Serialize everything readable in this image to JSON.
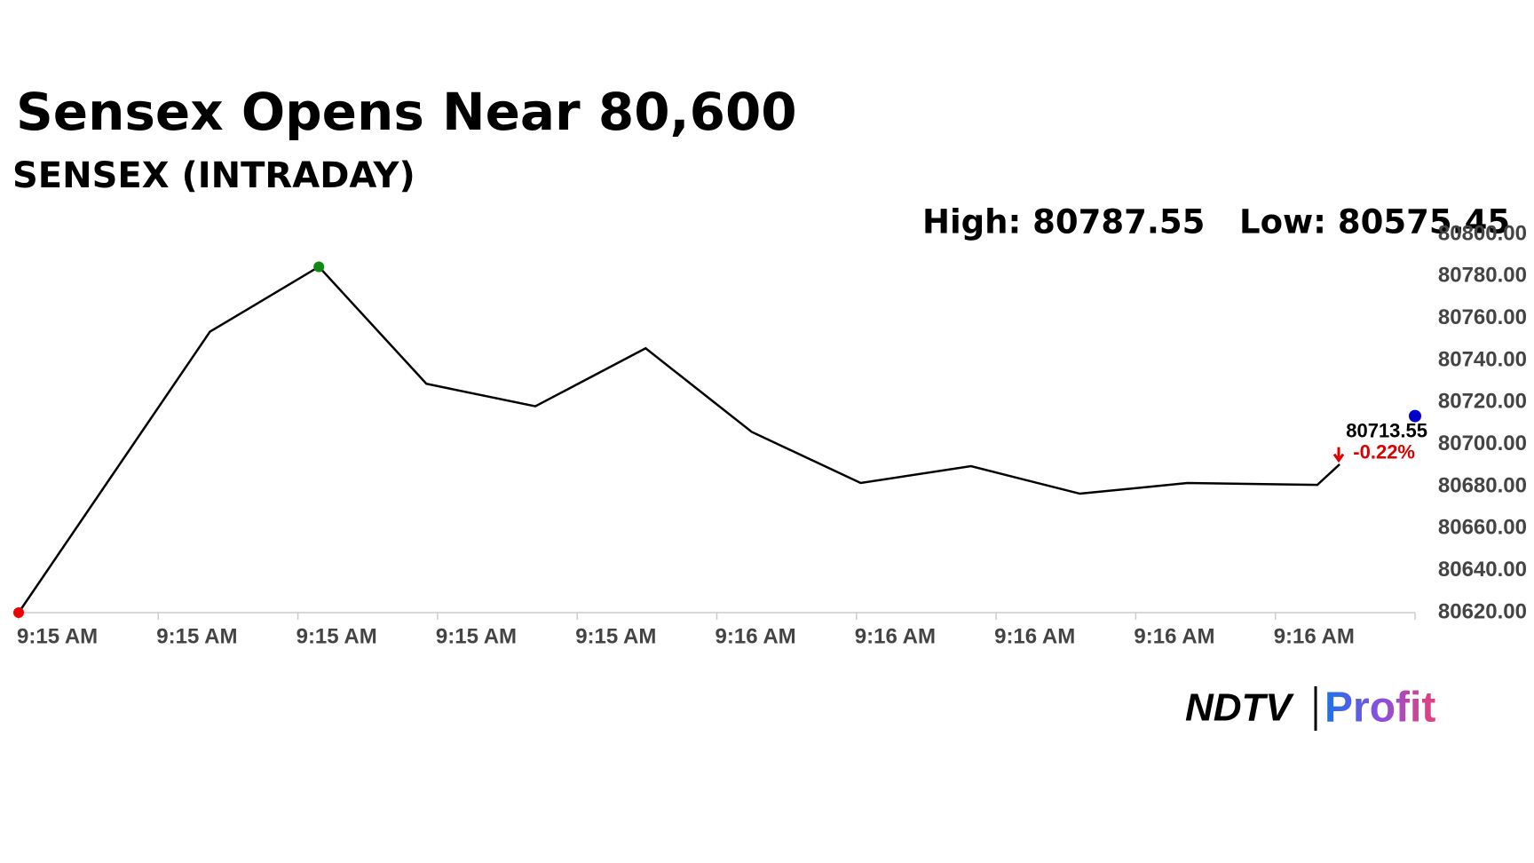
{
  "chart_data": {
    "type": "line",
    "title": "Sensex Opens Near 80,600",
    "subtitle": "SENSEX (INTRADAY)",
    "high_text": "High: 80787.55",
    "low_text": "Low: 80575.45",
    "x": [
      0,
      1.37,
      2.15,
      2.92,
      3.7,
      4.49,
      5.25,
      6.03,
      6.82,
      7.6,
      8.37,
      9.3,
      9.46
    ],
    "series": [
      {
        "color": "#000000",
        "values": [
          80620,
          80753.7,
          80784.6,
          80728.9,
          80718.2,
          80745.8,
          80706.0,
          80681.7,
          80689.7,
          80676.6,
          80681.7,
          80680.8,
          80690.6
        ]
      }
    ],
    "last": {
      "x": 10,
      "value": 80713.55,
      "color": "#0000cc"
    },
    "change": {
      "value": -0.22,
      "label": "-0.22%",
      "color": "#dd0000"
    },
    "start_color": "#ee0000",
    "high_color": "#118811",
    "xlim": [
      0,
      10
    ],
    "xticks": [
      {
        "value": 0,
        "label": "9:15 AM"
      },
      {
        "value": 1,
        "label": "9:15 AM"
      },
      {
        "value": 2,
        "label": "9:15 AM"
      },
      {
        "value": 3,
        "label": "9:15 AM"
      },
      {
        "value": 4,
        "label": "9:15 AM"
      },
      {
        "value": 5,
        "label": "9:16 AM"
      },
      {
        "value": 6,
        "label": "9:16 AM"
      },
      {
        "value": 7,
        "label": "9:16 AM"
      },
      {
        "value": 8,
        "label": "9:16 AM"
      },
      {
        "value": 9,
        "label": "9:16 AM"
      },
      {
        "value": 10,
        "label": ""
      }
    ],
    "ylim": [
      80620,
      80800
    ],
    "yticks": [
      {
        "value": 80800,
        "label": "80800.00"
      },
      {
        "value": 80780,
        "label": "80780.00"
      },
      {
        "value": 80760,
        "label": "80760.00"
      },
      {
        "value": 80740,
        "label": "80740.00"
      },
      {
        "value": 80720,
        "label": "80720.00"
      },
      {
        "value": 80700,
        "label": "80700.00"
      },
      {
        "value": 80680,
        "label": "80680.00"
      },
      {
        "value": 80660,
        "label": "80660.00"
      },
      {
        "value": 80640,
        "label": "80640.00"
      },
      {
        "value": 80620,
        "label": "80620.00"
      }
    ]
  },
  "logo": {
    "brand": "NDTV",
    "product": "Profit"
  }
}
